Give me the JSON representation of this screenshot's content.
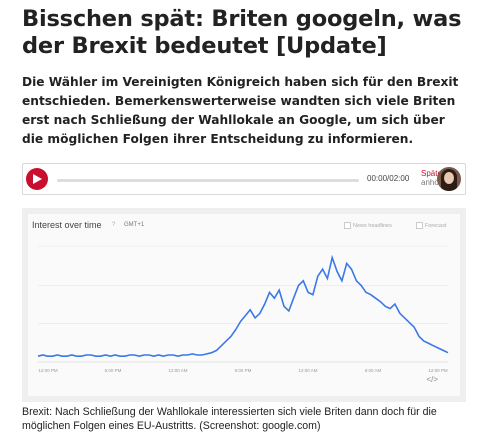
{
  "article": {
    "title": "Bisschen spät: Briten googeln, was der Brexit bedeutet [Update]",
    "lead": "Die Wähler im Vereinigten Königreich haben sich für den Brexit entschieden. Bemerkenswerterweise wandten sich viele Briten erst nach Schließung der Wahllokale an Google, um sich über die möglichen Folgen ihrer Entscheidung zu informieren.",
    "caption": "Brexit: Nach Schließung der Wahllokale interessierten sich viele Briten dann doch für die möglichen Folgen eines EU-Austritts. (Screenshot: google.com)"
  },
  "player": {
    "time": "00:00/02:00",
    "later_line1": "Später",
    "later_line2": "anhören",
    "progress": 0,
    "accent": "#c8102e"
  },
  "chart_header": {
    "title": "Interest over time",
    "help": "?",
    "timezone": "GMT+1",
    "check1": "News headlines",
    "check2": "Forecast",
    "embed": "</>"
  },
  "chart_data": {
    "type": "line",
    "title": "Interest over time",
    "x_tick_labels": [
      "12:00 PM",
      "6:00 PM",
      "12:00 AM",
      "6:00 PM",
      "12:00 AM",
      "6:00 AM",
      "12:00 PM"
    ],
    "series": [
      {
        "color": "#3b78e7",
        "values": [
          5,
          6,
          5,
          5,
          6,
          5,
          5,
          6,
          5,
          5,
          6,
          6,
          5,
          5,
          6,
          5,
          6,
          5,
          5,
          6,
          6,
          5,
          6,
          6,
          5,
          6,
          5,
          6,
          6,
          5,
          6,
          6,
          7,
          6,
          6,
          7,
          8,
          10,
          14,
          18,
          22,
          28,
          35,
          40,
          45,
          38,
          42,
          50,
          60,
          55,
          62,
          48,
          44,
          55,
          66,
          70,
          60,
          58,
          74,
          80,
          72,
          90,
          78,
          70,
          85,
          80,
          70,
          66,
          60,
          58,
          55,
          52,
          48,
          46,
          50,
          42,
          38,
          34,
          30,
          22,
          18,
          16,
          14,
          12,
          10,
          8
        ]
      }
    ],
    "ylim": [
      0,
      100
    ]
  }
}
